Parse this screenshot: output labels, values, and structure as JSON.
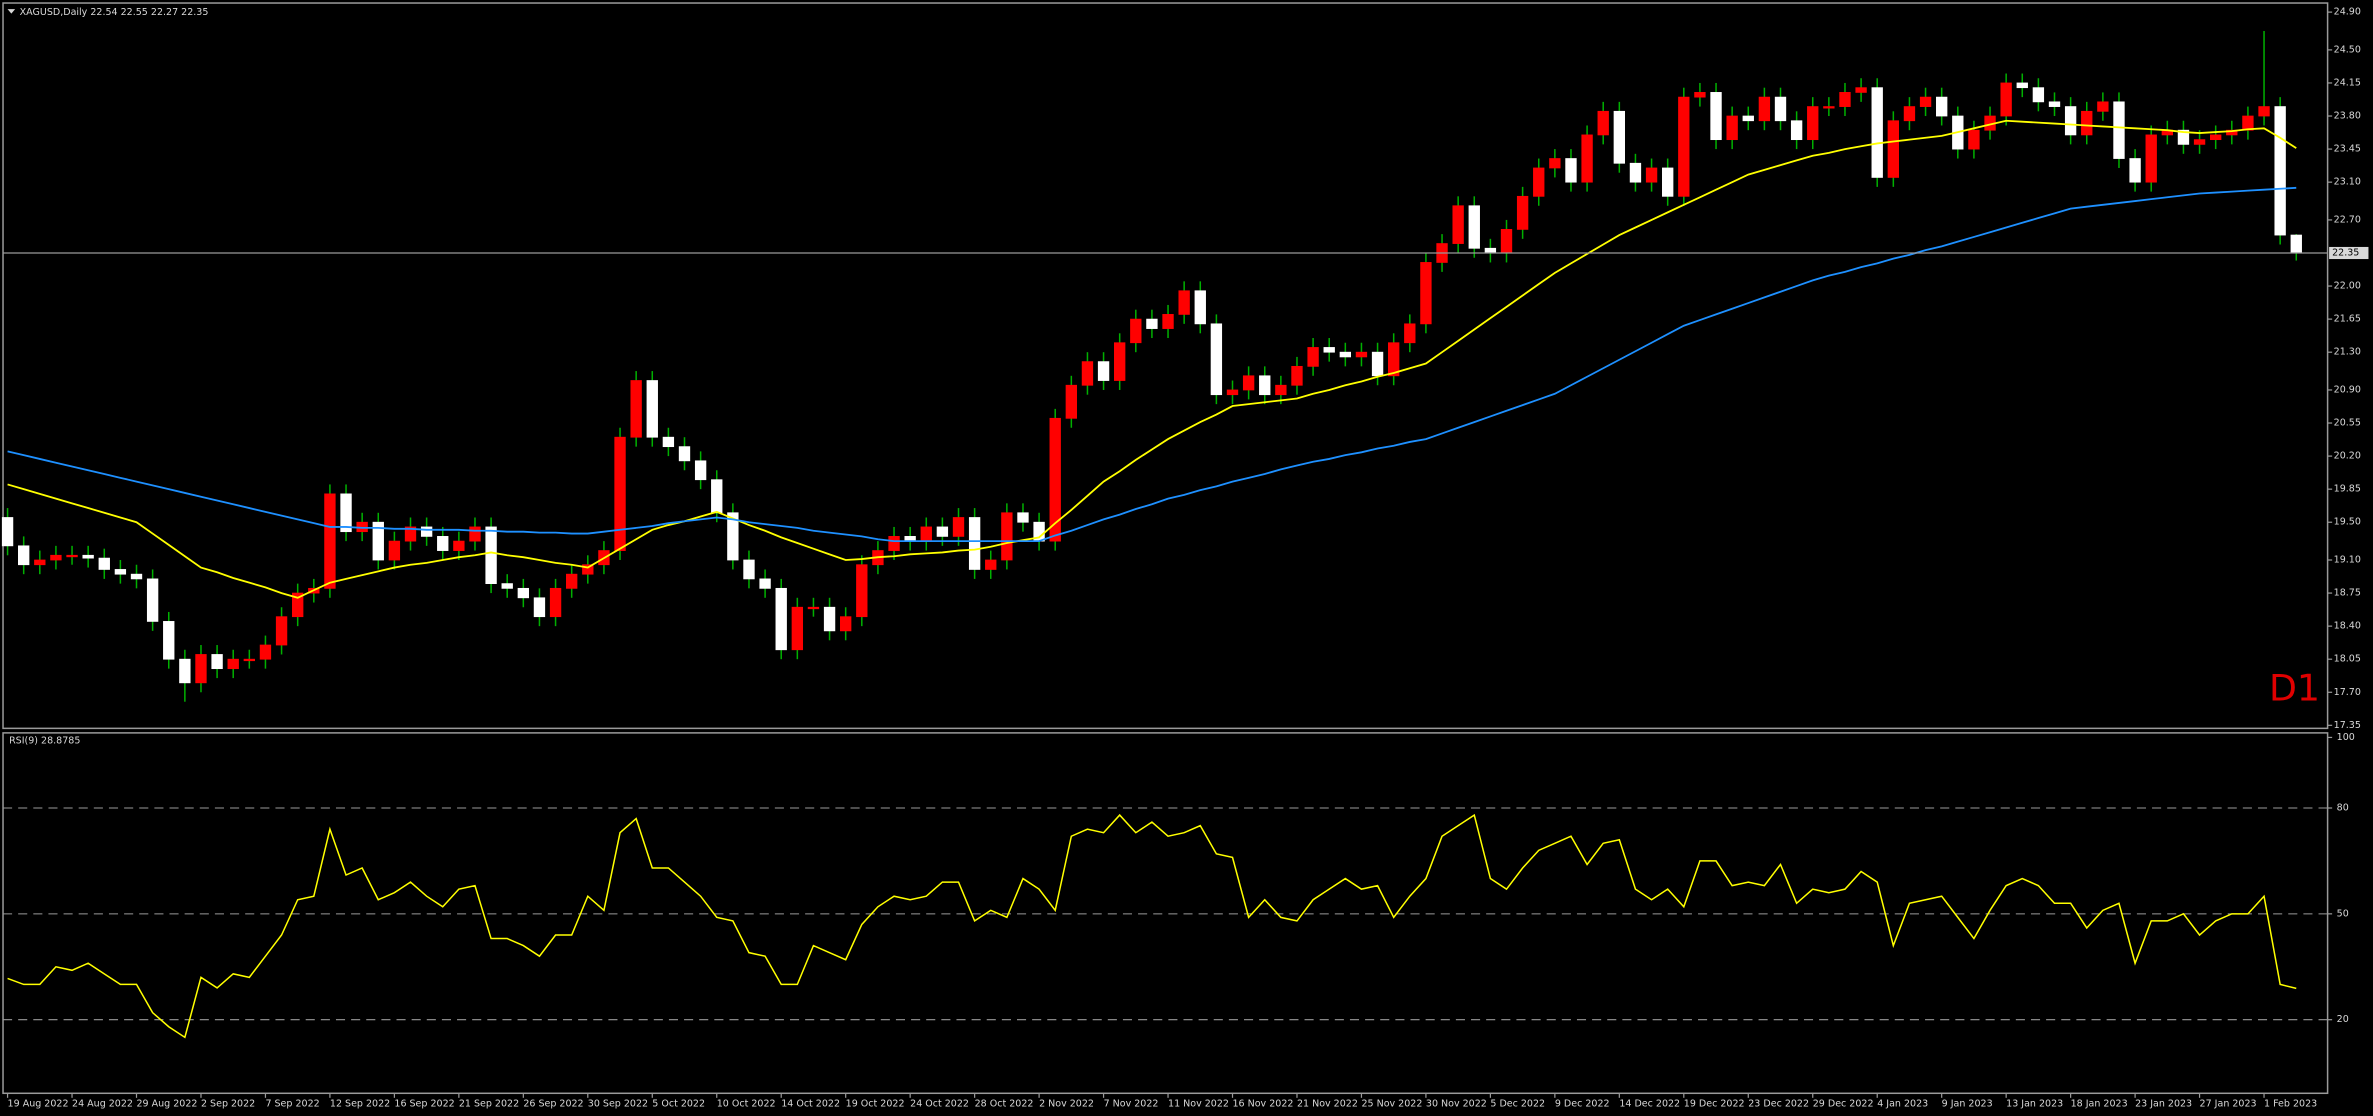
{
  "chart_data": [
    {
      "type": "candlestick",
      "title": "XAGUSD,Daily",
      "annotation": "D1",
      "up_color": "#ff0000",
      "down_color": "#ffffff",
      "wick_color": "#00b000",
      "categories": [
        "19 Aug 2022",
        null,
        null,
        null,
        "24 Aug 2022",
        null,
        null,
        null,
        "29 Aug 2022",
        null,
        null,
        null,
        "2 Sep 2022",
        null,
        null,
        null,
        "7 Sep 2022",
        null,
        null,
        null,
        "12 Sep 2022",
        null,
        null,
        null,
        "16 Sep 2022",
        null,
        null,
        null,
        "21 Sep 2022",
        null,
        null,
        null,
        "26 Sep 2022",
        null,
        null,
        null,
        "30 Sep 2022",
        null,
        null,
        null,
        "5 Oct 2022",
        null,
        null,
        null,
        "10 Oct 2022",
        null,
        null,
        null,
        "14 Oct 2022",
        null,
        null,
        null,
        "19 Oct 2022",
        null,
        null,
        null,
        "24 Oct 2022",
        null,
        null,
        null,
        "28 Oct 2022",
        null,
        null,
        null,
        "2 Nov 2022",
        null,
        null,
        null,
        "7 Nov 2022",
        null,
        null,
        null,
        "11 Nov 2022",
        null,
        null,
        null,
        "16 Nov 2022",
        null,
        null,
        null,
        "21 Nov 2022",
        null,
        null,
        null,
        "25 Nov 2022",
        null,
        null,
        null,
        "30 Nov 2022",
        null,
        null,
        null,
        "5 Dec 2022",
        null,
        null,
        null,
        "9 Dec 2022",
        null,
        null,
        null,
        "14 Dec 2022",
        null,
        null,
        null,
        "19 Dec 2022",
        null,
        null,
        null,
        "23 Dec 2022",
        null,
        null,
        null,
        "29 Dec 2022",
        null,
        null,
        null,
        "4 Jan 2023",
        null,
        null,
        null,
        "9 Jan 2023",
        null,
        null,
        null,
        "13 Jan 2023",
        null,
        null,
        null,
        "18 Jan 2023",
        null,
        null,
        null,
        "23 Jan 2023",
        null,
        null,
        null,
        "27 Jan 2023",
        null,
        null,
        null,
        "1 Feb 2023",
        null,
        null
      ],
      "open": [
        19.55,
        19.25,
        19.05,
        19.1,
        19.15,
        19.15,
        19.12,
        19.0,
        18.95,
        18.9,
        18.45,
        18.05,
        17.8,
        18.1,
        17.95,
        18.05,
        18.05,
        18.2,
        18.5,
        18.75,
        18.8,
        19.8,
        19.4,
        19.5,
        19.1,
        19.3,
        19.45,
        19.35,
        19.2,
        19.3,
        19.45,
        18.85,
        18.8,
        18.7,
        18.5,
        18.8,
        18.95,
        19.05,
        19.2,
        20.4,
        21.0,
        20.4,
        20.3,
        20.15,
        19.95,
        19.6,
        19.1,
        18.9,
        18.8,
        18.15,
        18.6,
        18.6,
        18.35,
        18.5,
        19.05,
        19.2,
        19.35,
        19.3,
        19.45,
        19.35,
        19.55,
        19.0,
        19.1,
        19.6,
        19.5,
        19.3,
        20.6,
        20.95,
        21.2,
        21.0,
        21.4,
        21.65,
        21.55,
        21.7,
        21.95,
        21.6,
        20.85,
        20.9,
        21.05,
        20.85,
        20.95,
        21.15,
        21.35,
        21.3,
        21.25,
        21.3,
        21.05,
        21.4,
        21.6,
        22.25,
        22.45,
        22.85,
        22.4,
        22.35,
        22.6,
        22.95,
        23.25,
        23.35,
        23.1,
        23.6,
        23.85,
        23.3,
        23.1,
        23.25,
        22.95,
        24.0,
        24.05,
        23.55,
        23.8,
        23.75,
        24.0,
        23.75,
        23.55,
        23.9,
        23.9,
        24.05,
        24.1,
        23.15,
        23.75,
        23.9,
        24.0,
        23.8,
        23.45,
        23.65,
        23.8,
        24.15,
        24.1,
        23.95,
        23.9,
        23.6,
        23.85,
        23.95,
        23.35,
        23.1,
        23.6,
        23.65,
        23.5,
        23.55,
        23.6,
        23.65,
        23.8,
        23.9,
        22.54
      ],
      "high": [
        19.65,
        19.35,
        19.2,
        19.25,
        19.25,
        19.25,
        19.22,
        19.1,
        19.05,
        19.0,
        18.55,
        18.15,
        18.2,
        18.2,
        18.15,
        18.15,
        18.3,
        18.6,
        18.85,
        18.9,
        19.9,
        19.9,
        19.6,
        19.6,
        19.4,
        19.55,
        19.55,
        19.45,
        19.4,
        19.55,
        19.55,
        18.95,
        18.9,
        18.8,
        18.9,
        19.05,
        19.15,
        19.3,
        20.5,
        21.1,
        21.1,
        20.5,
        20.4,
        20.25,
        20.05,
        19.7,
        19.2,
        19.0,
        18.9,
        18.7,
        18.7,
        18.7,
        18.6,
        19.15,
        19.3,
        19.45,
        19.45,
        19.55,
        19.55,
        19.65,
        19.65,
        19.2,
        19.7,
        19.7,
        19.6,
        20.7,
        21.05,
        21.3,
        21.3,
        21.5,
        21.75,
        21.75,
        21.8,
        22.05,
        22.05,
        21.7,
        21.0,
        21.15,
        21.15,
        21.05,
        21.25,
        21.45,
        21.45,
        21.4,
        21.4,
        21.4,
        21.5,
        21.7,
        22.35,
        22.55,
        22.95,
        22.95,
        22.5,
        22.7,
        23.05,
        23.35,
        23.45,
        23.45,
        23.7,
        23.95,
        23.95,
        23.4,
        23.35,
        23.35,
        24.1,
        24.15,
        24.15,
        23.9,
        23.9,
        24.1,
        24.1,
        23.85,
        24.0,
        24.0,
        24.15,
        24.2,
        24.2,
        23.85,
        24.0,
        24.1,
        24.1,
        23.9,
        23.75,
        23.9,
        24.25,
        24.25,
        24.2,
        24.05,
        24.0,
        23.95,
        24.05,
        24.05,
        23.45,
        23.7,
        23.75,
        23.75,
        23.65,
        23.7,
        23.75,
        23.9,
        24.7,
        24.0,
        22.55
      ],
      "low": [
        19.15,
        18.95,
        18.95,
        19.0,
        19.05,
        19.02,
        18.9,
        18.85,
        18.8,
        18.35,
        17.95,
        17.6,
        17.7,
        17.85,
        17.85,
        17.95,
        17.95,
        18.1,
        18.4,
        18.65,
        18.7,
        19.3,
        19.3,
        19.0,
        19.0,
        19.2,
        19.25,
        19.1,
        19.1,
        19.2,
        18.75,
        18.7,
        18.6,
        18.4,
        18.4,
        18.7,
        18.85,
        18.95,
        19.1,
        20.3,
        20.3,
        20.2,
        20.05,
        19.85,
        19.5,
        19.0,
        18.8,
        18.7,
        18.05,
        18.05,
        18.5,
        18.25,
        18.25,
        18.4,
        18.95,
        19.1,
        19.2,
        19.2,
        19.25,
        19.25,
        18.9,
        18.9,
        19.0,
        19.4,
        19.2,
        19.2,
        20.5,
        20.85,
        20.9,
        20.9,
        21.3,
        21.45,
        21.45,
        21.6,
        21.5,
        20.75,
        20.75,
        20.8,
        20.75,
        20.75,
        20.85,
        21.05,
        21.2,
        21.15,
        21.15,
        20.95,
        20.95,
        21.3,
        21.5,
        22.15,
        22.35,
        22.3,
        22.25,
        22.25,
        22.5,
        22.85,
        23.15,
        23.0,
        23.0,
        23.5,
        23.2,
        23.0,
        23.0,
        22.85,
        22.85,
        23.9,
        23.45,
        23.45,
        23.65,
        23.65,
        23.65,
        23.45,
        23.45,
        23.8,
        23.8,
        23.95,
        23.05,
        23.05,
        23.65,
        23.8,
        23.7,
        23.35,
        23.35,
        23.55,
        23.7,
        24.0,
        23.85,
        23.8,
        23.5,
        23.5,
        23.75,
        23.25,
        23.0,
        23.0,
        23.5,
        23.4,
        23.4,
        23.45,
        23.5,
        23.55,
        23.7,
        22.44,
        22.27
      ],
      "close": [
        19.25,
        19.05,
        19.1,
        19.15,
        19.15,
        19.12,
        19.0,
        18.95,
        18.9,
        18.45,
        18.05,
        17.8,
        18.1,
        17.95,
        18.05,
        18.05,
        18.2,
        18.5,
        18.75,
        18.8,
        19.8,
        19.4,
        19.5,
        19.1,
        19.3,
        19.45,
        19.35,
        19.2,
        19.3,
        19.45,
        18.85,
        18.8,
        18.7,
        18.5,
        18.8,
        18.95,
        19.05,
        19.2,
        20.4,
        21.0,
        20.4,
        20.3,
        20.15,
        19.95,
        19.6,
        19.1,
        18.9,
        18.8,
        18.15,
        18.6,
        18.6,
        18.35,
        18.5,
        19.05,
        19.2,
        19.35,
        19.3,
        19.45,
        19.35,
        19.55,
        19.0,
        19.1,
        19.6,
        19.5,
        19.3,
        20.6,
        20.95,
        21.2,
        21.0,
        21.4,
        21.65,
        21.55,
        21.7,
        21.95,
        21.6,
        20.85,
        20.9,
        21.05,
        20.85,
        20.95,
        21.15,
        21.35,
        21.3,
        21.25,
        21.3,
        21.05,
        21.4,
        21.6,
        22.25,
        22.45,
        22.85,
        22.4,
        22.35,
        22.6,
        22.95,
        23.25,
        23.35,
        23.1,
        23.6,
        23.85,
        23.3,
        23.1,
        23.25,
        22.95,
        24.0,
        24.05,
        23.55,
        23.8,
        23.75,
        24.0,
        23.75,
        23.55,
        23.9,
        23.9,
        24.05,
        24.1,
        23.15,
        23.75,
        23.9,
        24.0,
        23.8,
        23.45,
        23.65,
        23.8,
        24.15,
        24.1,
        23.95,
        23.9,
        23.6,
        23.85,
        23.95,
        23.35,
        23.1,
        23.6,
        23.65,
        23.5,
        23.55,
        23.6,
        23.65,
        23.8,
        23.9,
        22.54,
        22.35
      ],
      "lines": [
        {
          "color": "#ffff00",
          "values": [
            19.9,
            19.85,
            19.8,
            19.75,
            19.7,
            19.65,
            19.6,
            19.55,
            19.5,
            19.38,
            19.26,
            19.14,
            19.02,
            18.97,
            18.91,
            18.86,
            18.81,
            18.75,
            18.7,
            18.78,
            18.86,
            18.9,
            18.94,
            18.98,
            19.02,
            19.05,
            19.07,
            19.1,
            19.13,
            19.15,
            19.18,
            19.15,
            19.13,
            19.1,
            19.07,
            19.05,
            19.02,
            19.12,
            19.22,
            19.32,
            19.42,
            19.47,
            19.51,
            19.56,
            19.61,
            19.54,
            19.47,
            19.41,
            19.34,
            19.28,
            19.22,
            19.16,
            19.1,
            19.11,
            19.13,
            19.14,
            19.16,
            19.17,
            19.18,
            19.2,
            19.21,
            19.24,
            19.28,
            19.31,
            19.34,
            19.49,
            19.63,
            19.78,
            19.93,
            20.04,
            20.16,
            20.27,
            20.38,
            20.47,
            20.56,
            20.64,
            20.73,
            20.75,
            20.77,
            20.79,
            20.81,
            20.86,
            20.9,
            20.95,
            20.99,
            21.04,
            21.08,
            21.13,
            21.18,
            21.3,
            21.42,
            21.54,
            21.66,
            21.78,
            21.9,
            22.02,
            22.14,
            22.24,
            22.34,
            22.44,
            22.54,
            22.62,
            22.7,
            22.78,
            22.86,
            22.94,
            23.02,
            23.1,
            23.18,
            23.23,
            23.28,
            23.33,
            23.38,
            23.41,
            23.45,
            23.48,
            23.51,
            23.53,
            23.55,
            23.57,
            23.59,
            23.63,
            23.67,
            23.71,
            23.75,
            23.74,
            23.73,
            23.72,
            23.71,
            23.7,
            23.69,
            23.68,
            23.67,
            23.66,
            23.65,
            23.63,
            23.62,
            23.63,
            23.64,
            23.66,
            23.67,
            23.57,
            23.46
          ]
        },
        {
          "color": "#1e90ff",
          "values": [
            20.25,
            20.21,
            20.17,
            20.13,
            20.09,
            20.05,
            20.01,
            19.97,
            19.93,
            19.89,
            19.85,
            19.81,
            19.77,
            19.73,
            19.69,
            19.65,
            19.61,
            19.57,
            19.53,
            19.49,
            19.45,
            19.45,
            19.44,
            19.44,
            19.43,
            19.43,
            19.42,
            19.42,
            19.42,
            19.41,
            19.41,
            19.4,
            19.4,
            19.39,
            19.39,
            19.38,
            19.38,
            19.4,
            19.42,
            19.44,
            19.46,
            19.49,
            19.51,
            19.53,
            19.55,
            19.53,
            19.5,
            19.48,
            19.46,
            19.44,
            19.41,
            19.39,
            19.37,
            19.35,
            19.32,
            19.3,
            19.3,
            19.3,
            19.3,
            19.3,
            19.3,
            19.3,
            19.3,
            19.3,
            19.3,
            19.36,
            19.41,
            19.47,
            19.53,
            19.58,
            19.64,
            19.69,
            19.75,
            19.79,
            19.84,
            19.88,
            19.93,
            19.97,
            20.01,
            20.06,
            20.1,
            20.14,
            20.17,
            20.21,
            20.24,
            20.28,
            20.31,
            20.35,
            20.38,
            20.44,
            20.5,
            20.56,
            20.62,
            20.68,
            20.74,
            20.8,
            20.86,
            20.95,
            21.04,
            21.13,
            21.22,
            21.31,
            21.4,
            21.49,
            21.58,
            21.64,
            21.7,
            21.76,
            21.82,
            21.88,
            21.94,
            22.0,
            22.06,
            22.11,
            22.15,
            22.2,
            22.24,
            22.29,
            22.33,
            22.38,
            22.42,
            22.47,
            22.52,
            22.57,
            22.62,
            22.67,
            22.72,
            22.77,
            22.82,
            22.84,
            22.86,
            22.88,
            22.9,
            22.92,
            22.94,
            22.96,
            22.98,
            22.99,
            23.0,
            23.01,
            23.02,
            23.03,
            23.04
          ]
        }
      ],
      "ylim": [
        17.35,
        24.9
      ],
      "yticks": [
        {
          "value": 24.9,
          "label": "24.90"
        },
        {
          "value": 24.5,
          "label": "24.50"
        },
        24.15,
        {
          "value": 23.8,
          "label": "23.80"
        },
        23.45,
        {
          "value": 23.1,
          "label": "23.10"
        },
        {
          "value": 22.7,
          "label": "22.70"
        },
        {
          "value": 22.0,
          "label": "22.00"
        },
        21.65,
        {
          "value": 21.3,
          "label": "21.30"
        },
        {
          "value": 20.9,
          "label": "20.90"
        },
        20.55,
        {
          "value": 20.2,
          "label": "20.20"
        },
        19.85,
        {
          "value": 19.5,
          "label": "19.50"
        },
        {
          "value": 19.1,
          "label": "19.10"
        },
        18.75,
        {
          "value": 18.4,
          "label": "18.40"
        },
        18.05,
        {
          "value": 17.7,
          "label": "17.70"
        },
        17.35
      ]
    },
    {
      "type": "line",
      "title": "RSI(9)",
      "color": "#ffff00",
      "values": [
        31.7,
        30,
        30,
        35,
        34,
        36,
        33,
        30,
        30,
        22,
        18,
        15,
        32,
        29,
        33,
        32,
        38,
        44,
        54,
        55,
        74,
        61,
        63,
        54,
        56,
        59,
        55,
        52,
        57,
        58,
        43,
        43,
        41,
        38,
        44,
        44,
        55,
        51,
        73,
        77,
        63,
        63,
        59,
        55,
        49,
        48,
        39,
        38,
        30,
        30,
        41,
        39,
        37,
        47,
        52,
        55,
        54,
        55,
        59,
        59,
        48,
        51,
        49,
        60,
        57,
        51,
        72,
        74,
        73,
        78,
        73,
        76,
        72,
        73,
        75,
        67,
        66,
        49,
        54,
        49,
        48,
        54,
        57,
        60,
        57,
        58,
        49,
        55,
        60,
        72,
        75,
        78,
        60,
        57,
        63,
        68,
        70,
        72,
        64,
        70,
        71,
        57,
        54,
        57,
        52,
        65,
        65,
        58,
        59,
        58,
        64,
        53,
        57,
        56,
        57,
        62,
        59,
        41,
        53,
        54,
        55,
        49,
        43,
        51,
        58,
        60,
        58,
        53,
        53,
        46,
        51,
        53,
        36,
        48,
        48,
        50,
        44,
        48,
        50,
        50,
        55,
        30,
        28.8785
      ],
      "ylim": [
        0,
        100
      ],
      "yticks": [
        100,
        80,
        50,
        20
      ]
    }
  ]
}
